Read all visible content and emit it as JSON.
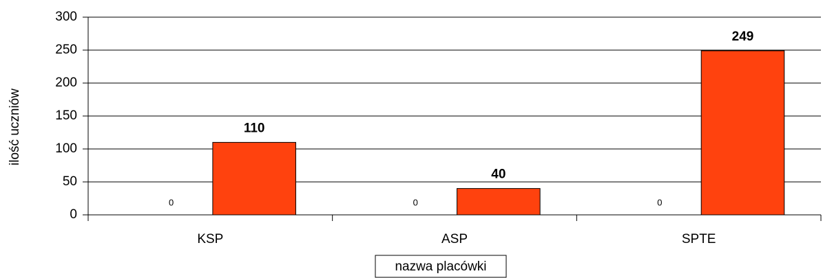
{
  "chart_data": {
    "type": "bar",
    "y_label": "ilość uczniów",
    "x_label": "nazwa placówki",
    "categories": [
      "KSP",
      "ASP",
      "SPTE"
    ],
    "series": [
      {
        "values": [
          0,
          0,
          0
        ]
      },
      {
        "color": "#ff420e",
        "values": [
          110,
          40,
          249
        ]
      }
    ],
    "ylim": [
      0,
      300
    ],
    "yticks": [
      0,
      50,
      100,
      150,
      200,
      250,
      300
    ],
    "grid": true
  }
}
